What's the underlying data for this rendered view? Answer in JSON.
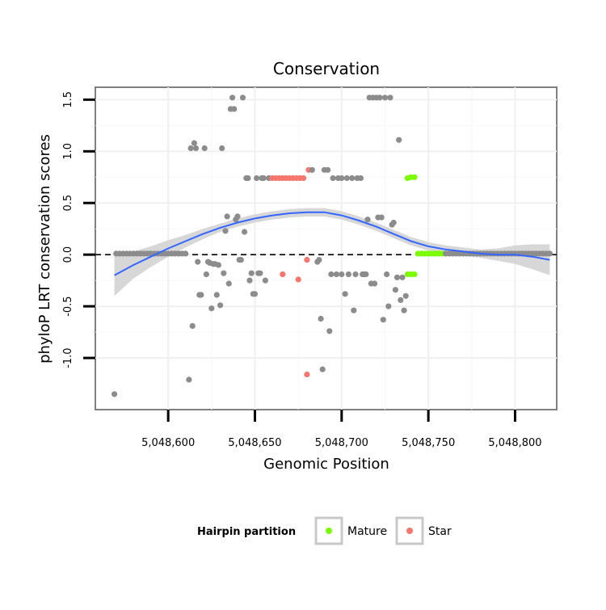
{
  "chart_data": {
    "type": "scatter",
    "title": "Conservation",
    "xlabel": "Genomic Position",
    "ylabel": "phyloP LRT conservation scores",
    "xlim": [
      5048558,
      5048824
    ],
    "ylim": [
      -1.5,
      1.62
    ],
    "x_ticks": [
      5048600,
      5048650,
      5048700,
      5048750,
      5048800
    ],
    "x_tick_labels": [
      "5,048,600",
      "5,048,650",
      "5,048,700",
      "5,048,750",
      "5,048,800"
    ],
    "y_ticks": [
      -1.0,
      -0.5,
      0.0,
      0.5,
      1.0,
      1.5
    ],
    "y_tick_labels": [
      "-1.0",
      "-0.5",
      "0.0",
      "0.5",
      "1.0",
      "1.5"
    ],
    "grid": true,
    "reference_line": {
      "y": 0,
      "style": "dashed"
    },
    "legend": {
      "title": "Hairpin partition",
      "position": "bottom",
      "items": [
        {
          "label": "Mature",
          "color": "#7CFC00"
        },
        {
          "label": "Star",
          "color": "#F8766D"
        }
      ]
    },
    "colors": {
      "other": "#8C8C8C",
      "Mature": "#7CFC00",
      "Star": "#F8766D",
      "smooth": "#3366FF",
      "ci_band": "#D3D3D3"
    },
    "points": [
      {
        "x": 5048569,
        "y": -1.35,
        "g": "other"
      },
      {
        "x": 5048570,
        "y": 0.01,
        "g": "other"
      },
      {
        "x": 5048572,
        "y": 0.01,
        "g": "other"
      },
      {
        "x": 5048574,
        "y": 0.01,
        "g": "other"
      },
      {
        "x": 5048576,
        "y": 0.01,
        "g": "other"
      },
      {
        "x": 5048578,
        "y": 0.01,
        "g": "other"
      },
      {
        "x": 5048580,
        "y": 0.01,
        "g": "other"
      },
      {
        "x": 5048582,
        "y": 0.01,
        "g": "other"
      },
      {
        "x": 5048584,
        "y": 0.01,
        "g": "other"
      },
      {
        "x": 5048586,
        "y": 0.01,
        "g": "other"
      },
      {
        "x": 5048588,
        "y": 0.01,
        "g": "other"
      },
      {
        "x": 5048590,
        "y": 0.01,
        "g": "other"
      },
      {
        "x": 5048592,
        "y": 0.01,
        "g": "other"
      },
      {
        "x": 5048594,
        "y": 0.01,
        "g": "other"
      },
      {
        "x": 5048596,
        "y": 0.01,
        "g": "other"
      },
      {
        "x": 5048598,
        "y": 0.01,
        "g": "other"
      },
      {
        "x": 5048600,
        "y": 0.01,
        "g": "other"
      },
      {
        "x": 5048602,
        "y": 0.01,
        "g": "other"
      },
      {
        "x": 5048604,
        "y": 0.01,
        "g": "other"
      },
      {
        "x": 5048606,
        "y": 0.01,
        "g": "other"
      },
      {
        "x": 5048608,
        "y": 0.01,
        "g": "other"
      },
      {
        "x": 5048610,
        "y": 0.01,
        "g": "other"
      },
      {
        "x": 5048612,
        "y": -1.21,
        "g": "other"
      },
      {
        "x": 5048613,
        "y": 1.03,
        "g": "other"
      },
      {
        "x": 5048614,
        "y": -0.69,
        "g": "other"
      },
      {
        "x": 5048615,
        "y": 1.08,
        "g": "other"
      },
      {
        "x": 5048616,
        "y": 1.03,
        "g": "other"
      },
      {
        "x": 5048617,
        "y": -0.07,
        "g": "other"
      },
      {
        "x": 5048618,
        "y": -0.39,
        "g": "other"
      },
      {
        "x": 5048619,
        "y": -0.39,
        "g": "other"
      },
      {
        "x": 5048621,
        "y": 1.03,
        "g": "other"
      },
      {
        "x": 5048622,
        "y": -0.19,
        "g": "other"
      },
      {
        "x": 5048623,
        "y": -0.07,
        "g": "other"
      },
      {
        "x": 5048624,
        "y": -0.08,
        "g": "other"
      },
      {
        "x": 5048625,
        "y": -0.52,
        "g": "other"
      },
      {
        "x": 5048626,
        "y": -0.09,
        "g": "other"
      },
      {
        "x": 5048627,
        "y": -0.09,
        "g": "other"
      },
      {
        "x": 5048628,
        "y": -0.39,
        "g": "other"
      },
      {
        "x": 5048629,
        "y": -0.1,
        "g": "other"
      },
      {
        "x": 5048630,
        "y": -0.49,
        "g": "other"
      },
      {
        "x": 5048631,
        "y": 1.03,
        "g": "other"
      },
      {
        "x": 5048632,
        "y": -0.18,
        "g": "other"
      },
      {
        "x": 5048633,
        "y": 0.23,
        "g": "other"
      },
      {
        "x": 5048634,
        "y": 0.37,
        "g": "other"
      },
      {
        "x": 5048635,
        "y": -0.28,
        "g": "other"
      },
      {
        "x": 5048636,
        "y": 1.41,
        "g": "other"
      },
      {
        "x": 5048637,
        "y": 1.52,
        "g": "other"
      },
      {
        "x": 5048638,
        "y": 1.41,
        "g": "other"
      },
      {
        "x": 5048639,
        "y": 0.34,
        "g": "other"
      },
      {
        "x": 5048640,
        "y": 0.37,
        "g": "other"
      },
      {
        "x": 5048641,
        "y": -0.05,
        "g": "other"
      },
      {
        "x": 5048642,
        "y": -0.05,
        "g": "other"
      },
      {
        "x": 5048643,
        "y": 1.52,
        "g": "other"
      },
      {
        "x": 5048644,
        "y": 0.22,
        "g": "other"
      },
      {
        "x": 5048645,
        "y": 0.74,
        "g": "other"
      },
      {
        "x": 5048646,
        "y": 0.74,
        "g": "other"
      },
      {
        "x": 5048647,
        "y": -0.25,
        "g": "other"
      },
      {
        "x": 5048648,
        "y": -0.18,
        "g": "other"
      },
      {
        "x": 5048649,
        "y": -0.38,
        "g": "other"
      },
      {
        "x": 5048650,
        "y": -0.38,
        "g": "other"
      },
      {
        "x": 5048651,
        "y": 0.74,
        "g": "other"
      },
      {
        "x": 5048652,
        "y": -0.18,
        "g": "other"
      },
      {
        "x": 5048653,
        "y": -0.18,
        "g": "other"
      },
      {
        "x": 5048654,
        "y": 0.74,
        "g": "other"
      },
      {
        "x": 5048655,
        "y": 0.74,
        "g": "other"
      },
      {
        "x": 5048656,
        "y": -0.25,
        "g": "other"
      },
      {
        "x": 5048658,
        "y": 0.74,
        "g": "other"
      },
      {
        "x": 5048660,
        "y": 0.74,
        "g": "Star"
      },
      {
        "x": 5048662,
        "y": 0.74,
        "g": "Star"
      },
      {
        "x": 5048664,
        "y": 0.74,
        "g": "Star"
      },
      {
        "x": 5048666,
        "y": -0.19,
        "g": "Star"
      },
      {
        "x": 5048666,
        "y": 0.74,
        "g": "Star"
      },
      {
        "x": 5048668,
        "y": 0.74,
        "g": "Star"
      },
      {
        "x": 5048670,
        "y": 0.74,
        "g": "Star"
      },
      {
        "x": 5048672,
        "y": 0.74,
        "g": "Star"
      },
      {
        "x": 5048674,
        "y": 0.74,
        "g": "Star"
      },
      {
        "x": 5048675,
        "y": -0.24,
        "g": "Star"
      },
      {
        "x": 5048676,
        "y": 0.74,
        "g": "Star"
      },
      {
        "x": 5048678,
        "y": 0.74,
        "g": "Star"
      },
      {
        "x": 5048680,
        "y": -0.05,
        "g": "Star"
      },
      {
        "x": 5048680,
        "y": -1.16,
        "g": "Star"
      },
      {
        "x": 5048681,
        "y": 0.82,
        "g": "Star"
      },
      {
        "x": 5048683,
        "y": 0.82,
        "g": "other"
      },
      {
        "x": 5048686,
        "y": -0.07,
        "g": "other"
      },
      {
        "x": 5048687,
        "y": -0.05,
        "g": "other"
      },
      {
        "x": 5048688,
        "y": -0.62,
        "g": "other"
      },
      {
        "x": 5048689,
        "y": -1.11,
        "g": "other"
      },
      {
        "x": 5048690,
        "y": 0.82,
        "g": "other"
      },
      {
        "x": 5048692,
        "y": 0.82,
        "g": "other"
      },
      {
        "x": 5048693,
        "y": -0.74,
        "g": "other"
      },
      {
        "x": 5048694,
        "y": -0.19,
        "g": "other"
      },
      {
        "x": 5048695,
        "y": 0.74,
        "g": "other"
      },
      {
        "x": 5048697,
        "y": -0.19,
        "g": "other"
      },
      {
        "x": 5048698,
        "y": 0.74,
        "g": "other"
      },
      {
        "x": 5048700,
        "y": -0.19,
        "g": "other"
      },
      {
        "x": 5048700,
        "y": 0.74,
        "g": "other"
      },
      {
        "x": 5048702,
        "y": -0.38,
        "g": "other"
      },
      {
        "x": 5048703,
        "y": 0.74,
        "g": "other"
      },
      {
        "x": 5048704,
        "y": -0.19,
        "g": "other"
      },
      {
        "x": 5048706,
        "y": 0.74,
        "g": "other"
      },
      {
        "x": 5048707,
        "y": -0.54,
        "g": "other"
      },
      {
        "x": 5048708,
        "y": -0.19,
        "g": "other"
      },
      {
        "x": 5048709,
        "y": 0.74,
        "g": "other"
      },
      {
        "x": 5048711,
        "y": 0.74,
        "g": "other"
      },
      {
        "x": 5048712,
        "y": -0.19,
        "g": "other"
      },
      {
        "x": 5048713,
        "y": -0.19,
        "g": "other"
      },
      {
        "x": 5048714,
        "y": -0.19,
        "g": "other"
      },
      {
        "x": 5048715,
        "y": 0.34,
        "g": "other"
      },
      {
        "x": 5048716,
        "y": 1.52,
        "g": "other"
      },
      {
        "x": 5048717,
        "y": -0.28,
        "g": "other"
      },
      {
        "x": 5048718,
        "y": 1.52,
        "g": "other"
      },
      {
        "x": 5048719,
        "y": -0.28,
        "g": "other"
      },
      {
        "x": 5048720,
        "y": 1.52,
        "g": "other"
      },
      {
        "x": 5048721,
        "y": 0.36,
        "g": "other"
      },
      {
        "x": 5048722,
        "y": 1.52,
        "g": "other"
      },
      {
        "x": 5048723,
        "y": 0.36,
        "g": "other"
      },
      {
        "x": 5048724,
        "y": -0.63,
        "g": "other"
      },
      {
        "x": 5048725,
        "y": 1.52,
        "g": "other"
      },
      {
        "x": 5048726,
        "y": -0.19,
        "g": "other"
      },
      {
        "x": 5048727,
        "y": -0.5,
        "g": "other"
      },
      {
        "x": 5048728,
        "y": 1.52,
        "g": "other"
      },
      {
        "x": 5048729,
        "y": 0.29,
        "g": "other"
      },
      {
        "x": 5048730,
        "y": 0.31,
        "g": "other"
      },
      {
        "x": 5048731,
        "y": -0.34,
        "g": "other"
      },
      {
        "x": 5048732,
        "y": -0.22,
        "g": "other"
      },
      {
        "x": 5048733,
        "y": 1.11,
        "g": "other"
      },
      {
        "x": 5048734,
        "y": -0.44,
        "g": "other"
      },
      {
        "x": 5048735,
        "y": -0.22,
        "g": "other"
      },
      {
        "x": 5048736,
        "y": -0.54,
        "g": "other"
      },
      {
        "x": 5048737,
        "y": -0.4,
        "g": "other"
      },
      {
        "x": 5048738,
        "y": -0.19,
        "g": "Mature"
      },
      {
        "x": 5048738,
        "y": 0.74,
        "g": "Mature"
      },
      {
        "x": 5048740,
        "y": -0.19,
        "g": "Mature"
      },
      {
        "x": 5048740,
        "y": 0.75,
        "g": "Mature"
      },
      {
        "x": 5048742,
        "y": -0.19,
        "g": "Mature"
      },
      {
        "x": 5048742,
        "y": 0.75,
        "g": "Mature"
      },
      {
        "x": 5048744,
        "y": 0.01,
        "g": "Mature"
      },
      {
        "x": 5048746,
        "y": 0.01,
        "g": "Mature"
      },
      {
        "x": 5048748,
        "y": 0.01,
        "g": "Mature"
      },
      {
        "x": 5048750,
        "y": 0.01,
        "g": "Mature"
      },
      {
        "x": 5048752,
        "y": 0.01,
        "g": "Mature"
      },
      {
        "x": 5048754,
        "y": 0.01,
        "g": "Mature"
      },
      {
        "x": 5048756,
        "y": 0.01,
        "g": "Mature"
      },
      {
        "x": 5048758,
        "y": 0.01,
        "g": "Mature"
      },
      {
        "x": 5048760,
        "y": 0.01,
        "g": "other"
      },
      {
        "x": 5048762,
        "y": 0.01,
        "g": "other"
      },
      {
        "x": 5048764,
        "y": 0.01,
        "g": "other"
      },
      {
        "x": 5048766,
        "y": 0.01,
        "g": "other"
      },
      {
        "x": 5048768,
        "y": 0.01,
        "g": "other"
      },
      {
        "x": 5048770,
        "y": 0.01,
        "g": "other"
      },
      {
        "x": 5048772,
        "y": 0.01,
        "g": "other"
      },
      {
        "x": 5048774,
        "y": 0.01,
        "g": "other"
      },
      {
        "x": 5048776,
        "y": 0.01,
        "g": "other"
      },
      {
        "x": 5048778,
        "y": 0.01,
        "g": "other"
      },
      {
        "x": 5048780,
        "y": 0.01,
        "g": "other"
      },
      {
        "x": 5048782,
        "y": 0.01,
        "g": "other"
      },
      {
        "x": 5048784,
        "y": 0.01,
        "g": "other"
      },
      {
        "x": 5048786,
        "y": 0.01,
        "g": "other"
      },
      {
        "x": 5048788,
        "y": 0.01,
        "g": "other"
      },
      {
        "x": 5048790,
        "y": 0.01,
        "g": "other"
      },
      {
        "x": 5048792,
        "y": 0.01,
        "g": "other"
      },
      {
        "x": 5048794,
        "y": 0.01,
        "g": "other"
      },
      {
        "x": 5048796,
        "y": 0.01,
        "g": "other"
      },
      {
        "x": 5048798,
        "y": 0.01,
        "g": "other"
      },
      {
        "x": 5048800,
        "y": 0.01,
        "g": "other"
      },
      {
        "x": 5048802,
        "y": 0.01,
        "g": "other"
      },
      {
        "x": 5048804,
        "y": 0.01,
        "g": "other"
      },
      {
        "x": 5048806,
        "y": 0.01,
        "g": "other"
      },
      {
        "x": 5048808,
        "y": 0.01,
        "g": "other"
      },
      {
        "x": 5048810,
        "y": 0.01,
        "g": "other"
      },
      {
        "x": 5048812,
        "y": 0.01,
        "g": "other"
      },
      {
        "x": 5048814,
        "y": 0.01,
        "g": "other"
      },
      {
        "x": 5048816,
        "y": 0.01,
        "g": "other"
      },
      {
        "x": 5048818,
        "y": 0.01,
        "g": "other"
      },
      {
        "x": 5048820,
        "y": 0.01,
        "g": "other"
      }
    ],
    "smooth_line": {
      "x": [
        5048569,
        5048580,
        5048590,
        5048600,
        5048610,
        5048620,
        5048630,
        5048640,
        5048650,
        5048660,
        5048670,
        5048680,
        5048690,
        5048700,
        5048710,
        5048720,
        5048730,
        5048740,
        5048750,
        5048760,
        5048770,
        5048780,
        5048790,
        5048800,
        5048810,
        5048820
      ],
      "y": [
        -0.2,
        -0.1,
        -0.02,
        0.06,
        0.13,
        0.2,
        0.26,
        0.31,
        0.35,
        0.38,
        0.4,
        0.41,
        0.41,
        0.38,
        0.33,
        0.27,
        0.2,
        0.13,
        0.08,
        0.05,
        0.03,
        0.01,
        0.0,
        0.0,
        -0.02,
        -0.05
      ],
      "lower": [
        -0.4,
        -0.23,
        -0.12,
        -0.02,
        0.07,
        0.15,
        0.22,
        0.27,
        0.31,
        0.34,
        0.36,
        0.37,
        0.37,
        0.34,
        0.29,
        0.23,
        0.16,
        0.09,
        0.04,
        0.01,
        -0.01,
        -0.03,
        -0.06,
        -0.09,
        -0.14,
        -0.2
      ],
      "upper": [
        0.0,
        0.03,
        0.08,
        0.14,
        0.19,
        0.25,
        0.3,
        0.35,
        0.39,
        0.42,
        0.44,
        0.45,
        0.45,
        0.42,
        0.37,
        0.31,
        0.24,
        0.17,
        0.12,
        0.09,
        0.07,
        0.05,
        0.06,
        0.09,
        0.1,
        0.1
      ]
    }
  }
}
